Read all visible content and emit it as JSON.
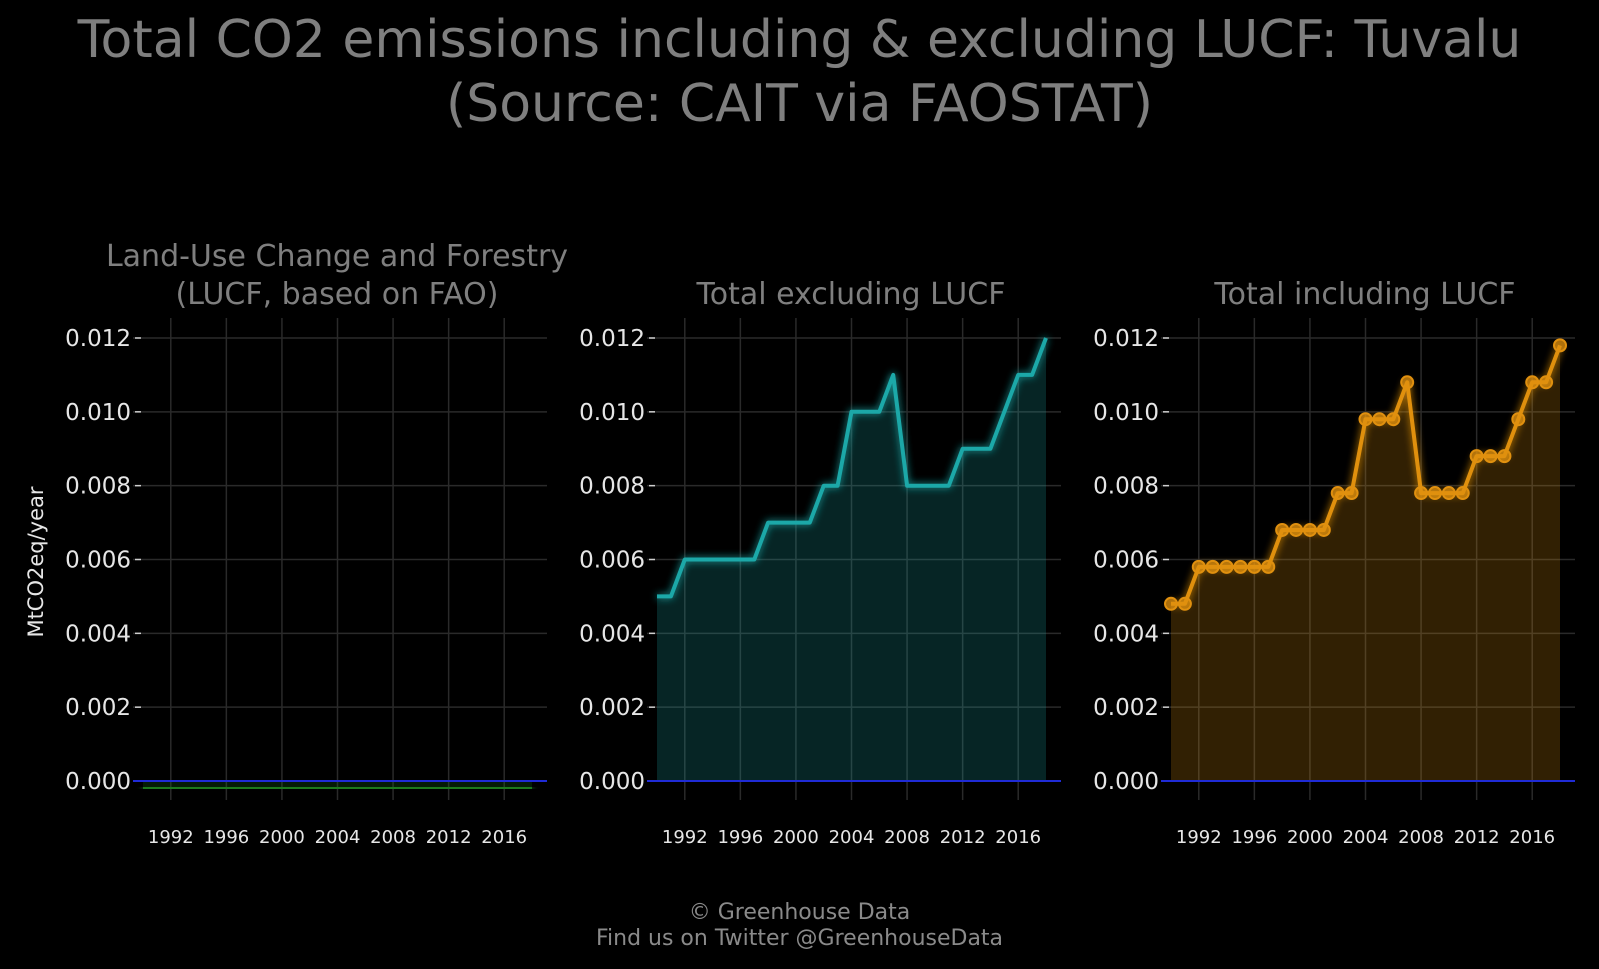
{
  "title_line1": "Total CO2 emissions including & excluding LUCF: Tuvalu",
  "title_line2": "(Source: CAIT via FAOSTAT)",
  "footer_line1": "© Greenhouse Data",
  "footer_line2": "Find us on Twitter @GreenhouseData",
  "colors": {
    "background": "#000000",
    "grid": "#2a2a2a",
    "text": "#7f7f7f",
    "tick_text": "#e6e6e6",
    "zero_line": "#1f2bd6",
    "lucf": "#1a7a1a",
    "excl": "#1aa8a8",
    "incl": "#e0900f"
  },
  "chart_data": [
    {
      "type": "area",
      "title": "Land-Use Change and Forestry\n(LUCF, based on FAO)",
      "ylabel": "MtCO2eq/year",
      "xlabel": "",
      "xlim": [
        1990,
        2018
      ],
      "ylim": [
        -0.0005,
        0.0124
      ],
      "xticks": [
        1992,
        1996,
        2000,
        2004,
        2008,
        2012,
        2016
      ],
      "yticks": [
        "0.000",
        "0.002",
        "0.004",
        "0.006",
        "0.008",
        "0.010",
        "0.012"
      ],
      "grid": true,
      "series": [
        {
          "color": "lucf",
          "markers": false,
          "x": [
            1990,
            1991,
            1992,
            1993,
            1994,
            1995,
            1996,
            1997,
            1998,
            1999,
            2000,
            2001,
            2002,
            2003,
            2004,
            2005,
            2006,
            2007,
            2008,
            2009,
            2010,
            2011,
            2012,
            2013,
            2014,
            2015,
            2016,
            2017,
            2018
          ],
          "values": [
            -0.0002,
            -0.0002,
            -0.0002,
            -0.0002,
            -0.0002,
            -0.0002,
            -0.0002,
            -0.0002,
            -0.0002,
            -0.0002,
            -0.0002,
            -0.00018,
            -0.00018,
            -0.00018,
            -0.00018,
            -0.00018,
            -0.00018,
            -0.00018,
            -0.00018,
            -0.00018,
            -0.00018,
            -0.00018,
            -0.00017,
            -0.00017,
            -0.00017,
            -0.00017,
            -0.00017,
            -0.00019,
            -0.00019
          ]
        }
      ]
    },
    {
      "type": "area",
      "title": "Total excluding LUCF",
      "xlabel": "",
      "xlim": [
        1990,
        2018
      ],
      "ylim": [
        -0.0005,
        0.0124
      ],
      "xticks": [
        1992,
        1996,
        2000,
        2004,
        2008,
        2012,
        2016
      ],
      "yticks": [
        "0.000",
        "0.002",
        "0.004",
        "0.006",
        "0.008",
        "0.010",
        "0.012"
      ],
      "grid": true,
      "series": [
        {
          "color": "excl",
          "markers": false,
          "x": [
            1990,
            1991,
            1992,
            1993,
            1994,
            1995,
            1996,
            1997,
            1998,
            1999,
            2000,
            2001,
            2002,
            2003,
            2004,
            2005,
            2006,
            2007,
            2008,
            2009,
            2010,
            2011,
            2012,
            2013,
            2014,
            2015,
            2016,
            2017,
            2018
          ],
          "values": [
            0.005,
            0.005,
            0.006,
            0.006,
            0.006,
            0.006,
            0.006,
            0.006,
            0.007,
            0.007,
            0.007,
            0.007,
            0.008,
            0.008,
            0.01,
            0.01,
            0.01,
            0.011,
            0.008,
            0.008,
            0.008,
            0.008,
            0.009,
            0.009,
            0.009,
            0.01,
            0.011,
            0.011,
            0.012
          ]
        }
      ]
    },
    {
      "type": "area",
      "title": "Total including LUCF",
      "xlabel": "",
      "xlim": [
        1990,
        2018
      ],
      "ylim": [
        -0.0005,
        0.0124
      ],
      "xticks": [
        1992,
        1996,
        2000,
        2004,
        2008,
        2012,
        2016
      ],
      "yticks": [
        "0.000",
        "0.002",
        "0.004",
        "0.006",
        "0.008",
        "0.010",
        "0.012"
      ],
      "grid": true,
      "series": [
        {
          "color": "incl",
          "markers": true,
          "x": [
            1990,
            1991,
            1992,
            1993,
            1994,
            1995,
            1996,
            1997,
            1998,
            1999,
            2000,
            2001,
            2002,
            2003,
            2004,
            2005,
            2006,
            2007,
            2008,
            2009,
            2010,
            2011,
            2012,
            2013,
            2014,
            2015,
            2016,
            2017,
            2018
          ],
          "values": [
            0.0048,
            0.0048,
            0.0058,
            0.0058,
            0.0058,
            0.0058,
            0.0058,
            0.0058,
            0.0068,
            0.0068,
            0.0068,
            0.0068,
            0.0078,
            0.0078,
            0.0098,
            0.0098,
            0.0098,
            0.0108,
            0.0078,
            0.0078,
            0.0078,
            0.0078,
            0.0088,
            0.0088,
            0.0088,
            0.0098,
            0.0108,
            0.0108,
            0.0118
          ]
        }
      ]
    }
  ]
}
